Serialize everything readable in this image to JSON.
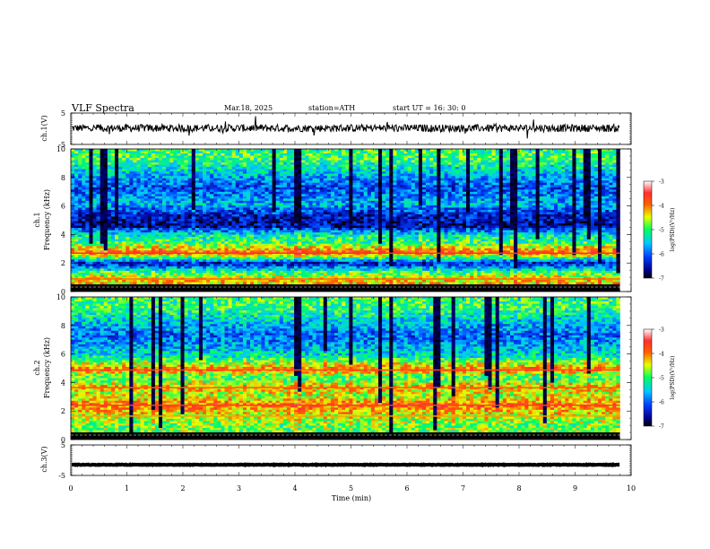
{
  "header": {
    "title": "VLF  Spectra",
    "date": "Mar.18, 2025",
    "station": "station=ATH",
    "start": "start  UT  =    16: 30: 0"
  },
  "chart_data": [
    {
      "type": "line",
      "panel": "ch1-waveform",
      "ylabel": "ch.1(V)",
      "ylim": [
        -5,
        5
      ],
      "yticks": [
        "5",
        "-5"
      ],
      "xlim": [
        0,
        10
      ],
      "series": [
        {
          "values_description_level": 0.2,
          "noise_amplitude": 1.2
        }
      ]
    },
    {
      "type": "heatmap",
      "panel": "ch1-spectrogram",
      "ylabel": "ch.1\nFrequency (kHz)",
      "ylabel_line1": "ch.1",
      "ylabel_line2": "Frequency (kHz)",
      "ylim": [
        0,
        10
      ],
      "yticks": [
        "0",
        "2",
        "4",
        "6",
        "8",
        "10"
      ],
      "xlim": [
        0,
        10
      ],
      "colorbar": {
        "label": "log(PSD)(V²/Hz)",
        "range": [
          -7,
          -3
        ],
        "ticks": [
          "-3",
          "-4",
          "-5",
          "-6",
          "-7"
        ]
      },
      "bands": [
        {
          "f": 0.4,
          "level": -4.3
        },
        {
          "f": 1.0,
          "level": -5.2
        },
        {
          "f": 1.5,
          "level": -6.5
        },
        {
          "f": 2.0,
          "level": -4.8
        },
        {
          "f": 2.3,
          "level": -3.8
        },
        {
          "f": 3.0,
          "level": -5.0
        },
        {
          "f": 3.6,
          "level": -5.3
        },
        {
          "f": 4.2,
          "level": -6.6
        },
        {
          "f": 5.0,
          "level": -6.4
        },
        {
          "f": 5.8,
          "level": -5.6
        },
        {
          "f": 7.0,
          "level": -6.1
        },
        {
          "f": 9.0,
          "level": -5.0
        }
      ]
    },
    {
      "type": "heatmap",
      "panel": "ch2-spectrogram",
      "ylabel_line1": "ch.2",
      "ylabel_line2": "Frequency (kHz)",
      "ylim": [
        0,
        10
      ],
      "yticks": [
        "0",
        "2",
        "4",
        "6",
        "8",
        "10"
      ],
      "xlim": [
        0,
        10
      ],
      "colorbar": {
        "label": "log(PSD)(V²/Hz)",
        "range": [
          -7,
          -3
        ],
        "ticks": [
          "-3",
          "-4",
          "-5",
          "-6",
          "-7"
        ]
      },
      "bands": [
        {
          "f": 0.5,
          "level": -4.8
        },
        {
          "f": 1.2,
          "level": -4.5
        },
        {
          "f": 2.0,
          "level": -3.9
        },
        {
          "f": 2.6,
          "level": -4.6
        },
        {
          "f": 3.3,
          "level": -4.2
        },
        {
          "f": 3.9,
          "level": -5.0
        },
        {
          "f": 4.6,
          "level": -4.0
        },
        {
          "f": 5.5,
          "level": -5.3
        },
        {
          "f": 7.0,
          "level": -6.0
        },
        {
          "f": 9.0,
          "level": -5.0
        }
      ]
    },
    {
      "type": "line",
      "panel": "ch3-waveform",
      "ylabel": "ch.3(V)",
      "ylim": [
        -5,
        5
      ],
      "yticks": [
        "5",
        "-5"
      ],
      "xlim": [
        0,
        10
      ],
      "series": [
        {
          "values_description_level": -1.5,
          "noise_amplitude": 0.1
        }
      ]
    }
  ],
  "xaxis": {
    "label": "Time  (min)",
    "ticks": [
      "0",
      "1",
      "2",
      "3",
      "4",
      "5",
      "6",
      "7",
      "8",
      "9",
      "10"
    ],
    "data_end": 9.8
  }
}
